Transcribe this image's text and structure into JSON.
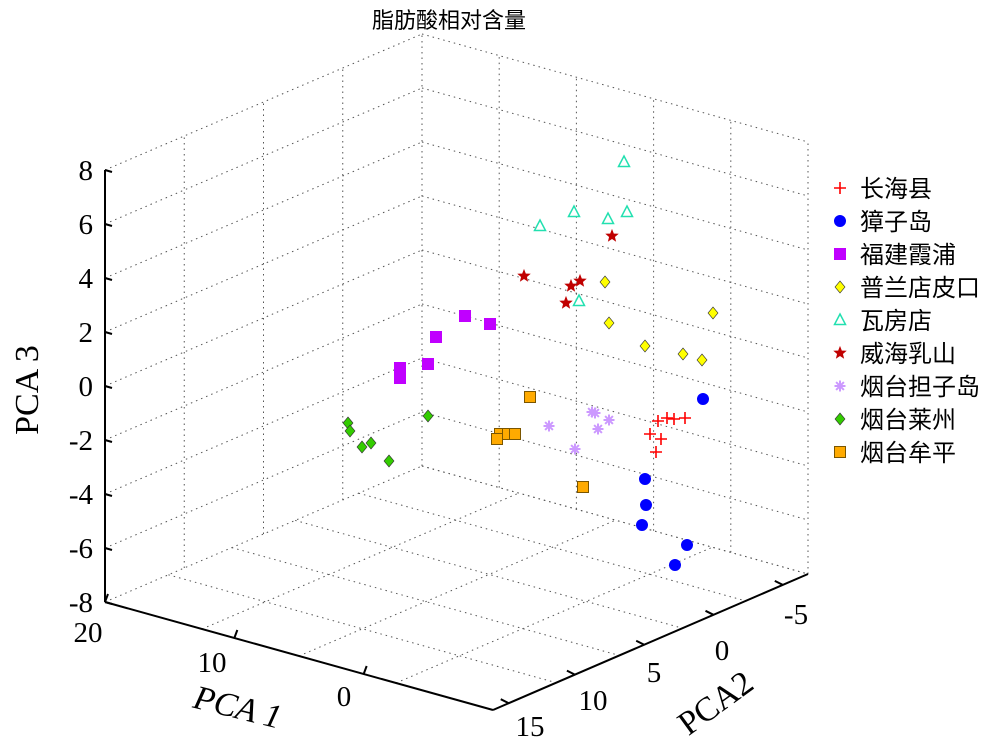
{
  "chart_data": {
    "type": "scatter3d",
    "title": "脂肪酸相对含量",
    "xlabel": "PCA 1",
    "ylabel": "PCA2",
    "zlabel": "PCA 3",
    "xlim": [
      -10,
      20
    ],
    "ylim": [
      -8,
      16
    ],
    "zlim": [
      -8,
      8
    ],
    "xticks": [
      "20",
      "10",
      "0"
    ],
    "yticks": [
      "-5",
      "0",
      "5",
      "10",
      "15"
    ],
    "zticks": [
      "8",
      "6",
      "4",
      "2",
      "0",
      "-2",
      "-4",
      "-6",
      "-8"
    ],
    "grid": true,
    "legend_position": "right",
    "series": [
      {
        "name": "长海县",
        "marker": "plus",
        "color": "#ff0000",
        "points": [
          [
            674,
            419
          ],
          [
            667,
            418
          ],
          [
            685,
            418
          ],
          [
            658,
            421
          ],
          [
            650,
            434
          ],
          [
            661,
            439
          ],
          [
            656,
            452
          ]
        ]
      },
      {
        "name": "獐子岛",
        "marker": "circle",
        "color": "#0000ff",
        "points": [
          [
            703,
            399
          ],
          [
            645,
            479
          ],
          [
            646,
            505
          ],
          [
            642,
            525
          ],
          [
            687,
            545
          ],
          [
            675,
            565
          ]
        ]
      },
      {
        "name": "福建霞浦",
        "marker": "square",
        "color": "#c000ff",
        "points": [
          [
            465,
            316
          ],
          [
            490,
            324
          ],
          [
            436,
            337
          ],
          [
            428,
            364
          ],
          [
            400,
            368
          ],
          [
            400,
            378
          ]
        ]
      },
      {
        "name": "普兰店皮口",
        "marker": "diamond",
        "color": "#ffff00",
        "points": [
          [
            605,
            282
          ],
          [
            713,
            313
          ],
          [
            609,
            323
          ],
          [
            645,
            346
          ],
          [
            683,
            354
          ],
          [
            702,
            360
          ]
        ]
      },
      {
        "name": "瓦房店",
        "marker": "triangle",
        "color": "#22e0b0",
        "points": [
          [
            624,
            162
          ],
          [
            627,
            212
          ],
          [
            574,
            212
          ],
          [
            608,
            219
          ],
          [
            540,
            226
          ],
          [
            579,
            301
          ]
        ]
      },
      {
        "name": "威海乳山",
        "marker": "star",
        "color": "#c00000",
        "points": [
          [
            612,
            236
          ],
          [
            524,
            276
          ],
          [
            580,
            281
          ],
          [
            571,
            286
          ],
          [
            566,
            303
          ]
        ]
      },
      {
        "name": "烟台担子岛",
        "marker": "asterisk",
        "color": "#cc99ff",
        "points": [
          [
            592,
            412
          ],
          [
            595,
            413
          ],
          [
            609,
            420
          ],
          [
            549,
            426
          ],
          [
            598,
            429
          ],
          [
            575,
            449
          ]
        ]
      },
      {
        "name": "烟台莱州",
        "marker": "diamond",
        "color": "#33cc00",
        "points": [
          [
            348,
            423
          ],
          [
            350,
            431
          ],
          [
            428,
            416
          ],
          [
            371,
            443
          ],
          [
            362,
            447
          ],
          [
            389,
            461
          ]
        ]
      },
      {
        "name": "烟台牟平",
        "marker": "square",
        "color": "#ffaa00",
        "points": [
          [
            530,
            397
          ],
          [
            500,
            434
          ],
          [
            508,
            434
          ],
          [
            515,
            434
          ],
          [
            497,
            439
          ],
          [
            583,
            487
          ]
        ]
      }
    ]
  }
}
